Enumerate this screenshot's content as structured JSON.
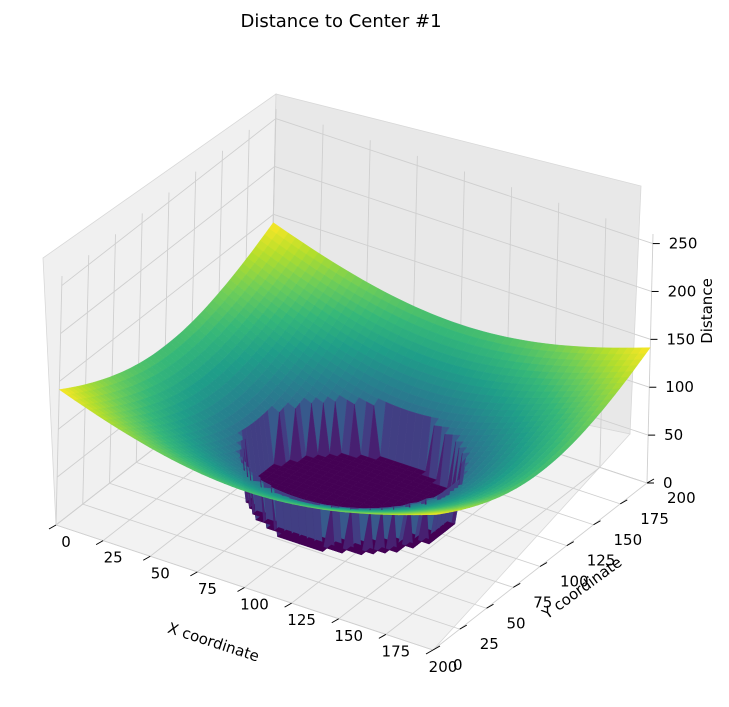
{
  "chart_data": {
    "type": "surface3d",
    "title": "Distance to Center #1",
    "xlabel": "X coordinate",
    "ylabel": "Y coordinate",
    "zlabel": "Distance",
    "x_ticks": [
      "0",
      "25",
      "50",
      "75",
      "100",
      "125",
      "150",
      "175",
      "200"
    ],
    "y_ticks": [
      "0",
      "25",
      "50",
      "75",
      "100",
      "125",
      "150",
      "175",
      "200"
    ],
    "z_ticks": [
      "0",
      "50",
      "100",
      "150",
      "200",
      "250"
    ],
    "xlim": [
      0,
      200
    ],
    "ylim": [
      0,
      200
    ],
    "zlim": [
      0,
      260
    ],
    "center": {
      "x": 100,
      "y": 100
    },
    "cutoff_radius": 50,
    "colormap": "viridis",
    "grid": true
  }
}
